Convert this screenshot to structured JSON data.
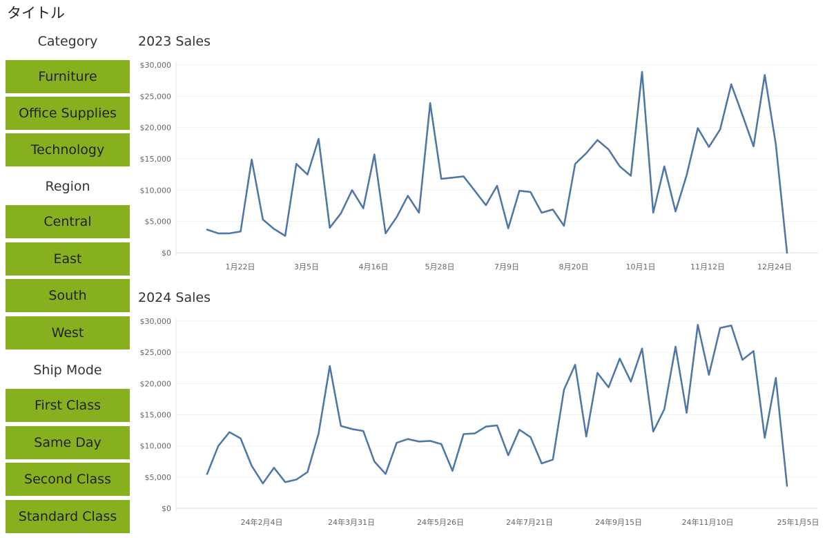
{
  "page": {
    "title": "タイトル"
  },
  "filters": {
    "category": {
      "heading": "Category",
      "items": [
        "Furniture",
        "Office Supplies",
        "Technology"
      ]
    },
    "region": {
      "heading": "Region",
      "items": [
        "Central",
        "East",
        "South",
        "West"
      ]
    },
    "ship_mode": {
      "heading": "Ship Mode",
      "items": [
        "First Class",
        "Same Day",
        "Second Class",
        "Standard Class"
      ]
    }
  },
  "colors": {
    "button_bg": "#87b01e",
    "line": "#4e79a7"
  },
  "chart_data": [
    {
      "type": "line",
      "title": "2023 Sales",
      "y_ticks": [
        "$30,000",
        "$25,000",
        "$20,000",
        "$15,000",
        "$10,000",
        "$5,000",
        "$0"
      ],
      "x_ticks": [
        "1月22日",
        "3月5日",
        "4月16日",
        "5月28日",
        "7月9日",
        "8月20日",
        "10月1日",
        "11月12日",
        "12月24日"
      ],
      "ylim": [
        0,
        30000
      ],
      "grid": true,
      "series": [
        {
          "values": [
            3700,
            3100,
            3100,
            3400,
            14900,
            5300,
            3800,
            2700,
            14200,
            12500,
            18200,
            4000,
            6300,
            10000,
            7100,
            15700,
            3100,
            5700,
            9100,
            6400,
            23900,
            11800,
            12000,
            12200,
            9900,
            7600,
            10700,
            3900,
            9900,
            9700,
            6400,
            6900,
            4300,
            14200,
            15900,
            18000,
            16500,
            13800,
            12300,
            28900,
            6400,
            13800,
            6600,
            12400,
            19900,
            16900,
            19700,
            26900,
            22000,
            17000,
            28400,
            17300,
            0
          ]
        }
      ]
    },
    {
      "type": "line",
      "title": "2024 Sales",
      "y_ticks": [
        "$30,000",
        "$25,000",
        "$20,000",
        "$15,000",
        "$10,000",
        "$5,000",
        "$0"
      ],
      "x_ticks": [
        "24年2月4日",
        "24年3月31日",
        "24年5月26日",
        "24年7月21日",
        "24年9月15日",
        "24年11月10日",
        "25年1月5日"
      ],
      "ylim": [
        0,
        30000
      ],
      "grid": true,
      "series": [
        {
          "values": [
            5500,
            10000,
            12200,
            11200,
            6800,
            4000,
            6500,
            4200,
            4600,
            5800,
            12000,
            22800,
            13200,
            12700,
            12400,
            7500,
            5500,
            10500,
            11100,
            10700,
            10800,
            10300,
            6000,
            11900,
            12000,
            13100,
            13300,
            8500,
            12600,
            11400,
            7200,
            7800,
            19000,
            23000,
            11500,
            21700,
            19400,
            24000,
            20300,
            25600,
            12300,
            15900,
            25900,
            15300,
            29400,
            21400,
            28900,
            29300,
            23800,
            25200,
            11300,
            20900,
            3600
          ]
        }
      ]
    }
  ]
}
